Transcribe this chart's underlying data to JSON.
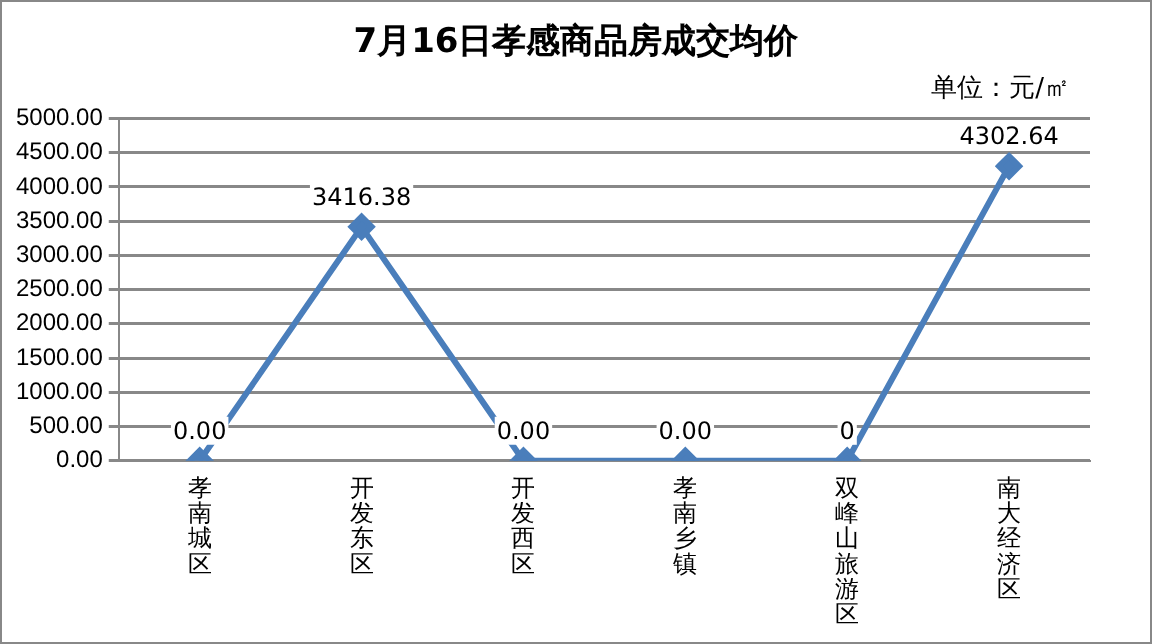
{
  "chart_data": {
    "type": "line",
    "title": "7月16日孝感商品房成交均价",
    "annotations": [
      "单位：元/㎡"
    ],
    "categories": [
      "孝南城区",
      "开发东区",
      "开发西区",
      "孝南乡镇",
      "双峰山旅游区",
      "南大经济区"
    ],
    "series": [
      {
        "color": "#4a7ebb",
        "values": [
          0,
          3416.38,
          0,
          0,
          0,
          4302.64
        ],
        "value_labels": [
          "0.00",
          "3416.38",
          "0.00",
          "0.00",
          "0",
          "4302.64"
        ]
      }
    ],
    "ylim": [
      0,
      5000
    ],
    "yticks": [
      {
        "value": 0,
        "label": "0.00"
      },
      {
        "value": 500,
        "label": "500.00"
      },
      {
        "value": 1000,
        "label": "1000.00"
      },
      {
        "value": 1500,
        "label": "1500.00"
      },
      {
        "value": 2000,
        "label": "2000.00"
      },
      {
        "value": 2500,
        "label": "2500.00"
      },
      {
        "value": 3000,
        "label": "3000.00"
      },
      {
        "value": 3500,
        "label": "3500.00"
      },
      {
        "value": 4000,
        "label": "4000.00"
      },
      {
        "value": 4500,
        "label": "4500.00"
      },
      {
        "value": 5000,
        "label": "5000.00"
      }
    ],
    "grid": "y",
    "legend": false,
    "marker": "diamond",
    "line_style": "solid"
  }
}
